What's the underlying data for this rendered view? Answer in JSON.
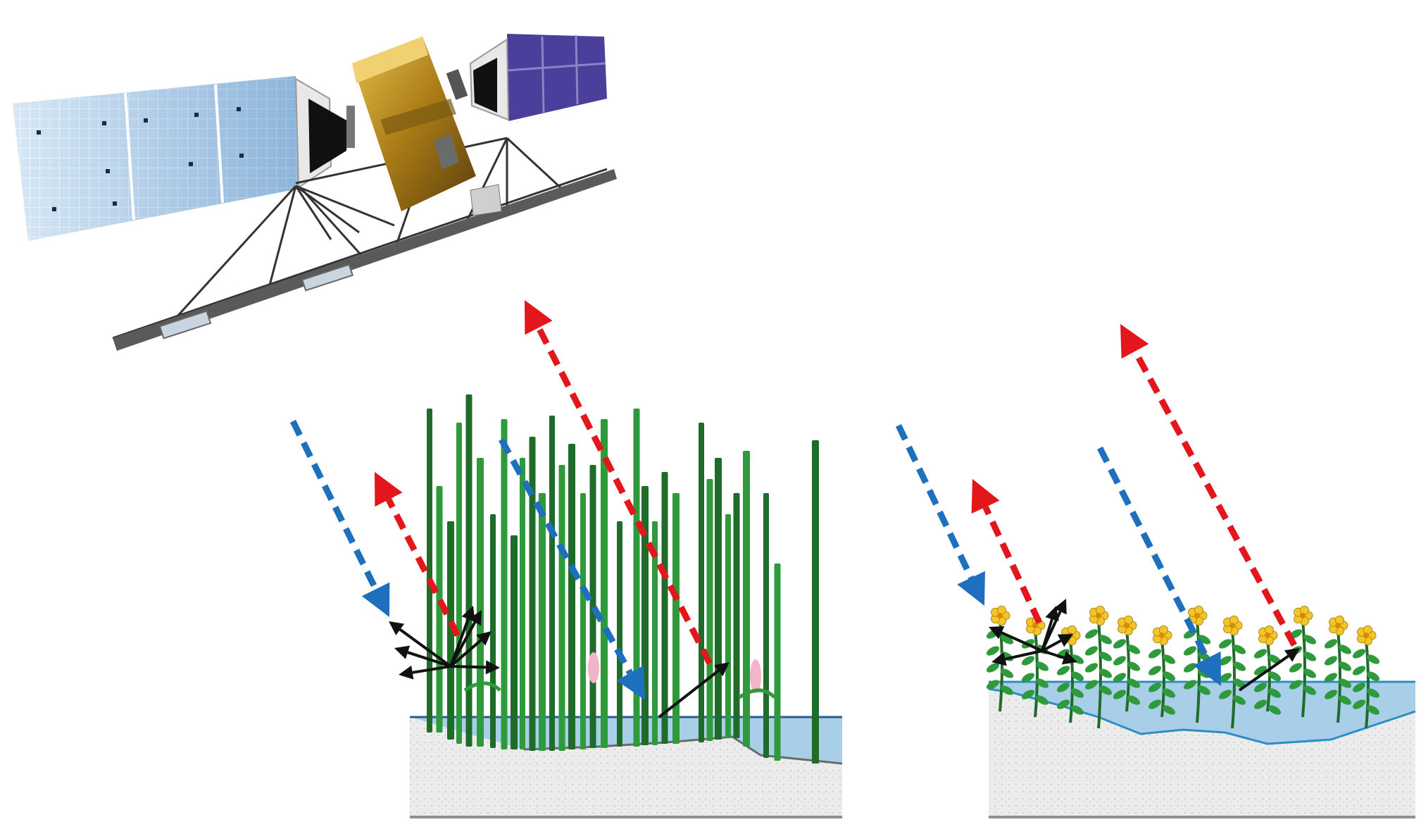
{
  "colors": {
    "transmit": "#1f6fbf",
    "return": "#e3161b",
    "scatter": "#111111",
    "stem": "#2e9a3c",
    "stem_dark": "#1f6b2a",
    "water": "#a9cfe8",
    "water_edge": "#2b8fc6",
    "soil": "#ececec",
    "soil_edge": "#8f8f8f",
    "flower": "#f3c52a",
    "panel_left": "#bcd9ef",
    "panel_right": "#4a3f9a",
    "body_gold": "#b88a1e"
  },
  "icons": {
    "satellite": "sar-satellite-icon",
    "emergent": "emergent-reed-vegetation",
    "floating": "floating-aquatic-vegetation"
  }
}
